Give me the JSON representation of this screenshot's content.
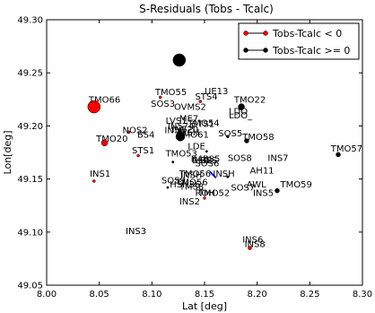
{
  "chart_data": {
    "type": "scatter",
    "title": "S-Residuals (Tobs - Tcalc)",
    "xlabel": "Lat [deg]",
    "ylabel": "Lon[deg]",
    "xlim": [
      8.0,
      8.3
    ],
    "ylim": [
      49.05,
      49.3
    ],
    "xticks": [
      "8.00",
      "8.05",
      "8.10",
      "8.15",
      "8.20",
      "8.25",
      "8.30"
    ],
    "yticks": [
      "49.05",
      "49.10",
      "49.15",
      "49.20",
      "49.25",
      "49.30"
    ],
    "grid": false,
    "legend_position": "top-right",
    "series": [
      {
        "name": "Tobs-Tcalc < 0",
        "color": "#ff0000"
      },
      {
        "name": "Tobs-Tcalc >= 0",
        "color": "#000000"
      }
    ],
    "markers": [
      {
        "x": 8.045,
        "y": 49.218,
        "r": 7,
        "sign": "neg"
      },
      {
        "x": 8.055,
        "y": 49.184,
        "r": 3.5,
        "sign": "neg"
      },
      {
        "x": 8.078,
        "y": 49.194,
        "r": 1.5,
        "sign": "neg"
      },
      {
        "x": 8.045,
        "y": 49.148,
        "r": 1.5,
        "sign": "neg"
      },
      {
        "x": 8.087,
        "y": 49.172,
        "r": 1.5,
        "sign": "neg"
      },
      {
        "x": 8.108,
        "y": 49.227,
        "r": 1.5,
        "sign": "neg"
      },
      {
        "x": 8.146,
        "y": 49.223,
        "r": 1.5,
        "sign": "neg"
      },
      {
        "x": 8.15,
        "y": 49.132,
        "r": 1.5,
        "sign": "neg"
      },
      {
        "x": 8.193,
        "y": 49.085,
        "r": 2,
        "sign": "neg"
      },
      {
        "x": 8.126,
        "y": 49.262,
        "r": 7,
        "sign": "pos"
      },
      {
        "x": 8.127,
        "y": 49.19,
        "r": 5,
        "sign": "pos"
      },
      {
        "x": 8.185,
        "y": 49.218,
        "r": 3.5,
        "sign": "pos"
      },
      {
        "x": 8.19,
        "y": 49.186,
        "r": 2.5,
        "sign": "pos"
      },
      {
        "x": 8.172,
        "y": 49.19,
        "r": 1.5,
        "sign": "pos"
      },
      {
        "x": 8.219,
        "y": 49.139,
        "r": 2.5,
        "sign": "pos"
      },
      {
        "x": 8.277,
        "y": 49.173,
        "r": 2.5,
        "sign": "pos"
      },
      {
        "x": 8.12,
        "y": 49.166,
        "r": 1.2,
        "sign": "pos"
      },
      {
        "x": 8.115,
        "y": 49.142,
        "r": 1.2,
        "sign": "pos"
      },
      {
        "x": 8.172,
        "y": 49.152,
        "r": 1.2,
        "sign": "pos"
      },
      {
        "x": 8.152,
        "y": 49.176,
        "r": 1.2,
        "sign": "pos"
      }
    ],
    "labels": [
      {
        "text": "TMO66",
        "x": 8.04,
        "y": 49.222
      },
      {
        "text": "TMO55",
        "x": 8.103,
        "y": 49.229
      },
      {
        "text": "STS4",
        "x": 8.141,
        "y": 49.225
      },
      {
        "text": "SOS3",
        "x": 8.099,
        "y": 49.218
      },
      {
        "text": "OVMS2",
        "x": 8.121,
        "y": 49.215
      },
      {
        "text": "TMO22",
        "x": 8.178,
        "y": 49.222
      },
      {
        "text": "LDO",
        "x": 8.173,
        "y": 49.211
      },
      {
        "text": "LDO_",
        "x": 8.173,
        "y": 49.207
      },
      {
        "text": "NOS2",
        "x": 8.072,
        "y": 49.193
      },
      {
        "text": "LVS1",
        "x": 8.113,
        "y": 49.202
      },
      {
        "text": "ME7",
        "x": 8.126,
        "y": 49.204
      },
      {
        "text": "STS1",
        "x": 8.138,
        "y": 49.199
      },
      {
        "text": "TMO54",
        "x": 8.134,
        "y": 49.2
      },
      {
        "text": "IN574",
        "x": 8.115,
        "y": 49.197
      },
      {
        "text": "IN56",
        "x": 8.112,
        "y": 49.193
      },
      {
        "text": "INS20",
        "x": 8.119,
        "y": 49.194
      },
      {
        "text": "WSH",
        "x": 8.125,
        "y": 49.191
      },
      {
        "text": "BS4",
        "x": 8.086,
        "y": 49.189
      },
      {
        "text": "TMO61",
        "x": 8.124,
        "y": 49.189
      },
      {
        "text": "SOS5",
        "x": 8.163,
        "y": 49.19
      },
      {
        "text": "TMO58",
        "x": 8.186,
        "y": 49.187
      },
      {
        "text": "TMO20",
        "x": 8.047,
        "y": 49.185
      },
      {
        "text": "LDE",
        "x": 8.134,
        "y": 49.178
      },
      {
        "text": "STS1",
        "x": 8.081,
        "y": 49.174
      },
      {
        "text": "TMO53",
        "x": 8.113,
        "y": 49.171
      },
      {
        "text": "TMO57",
        "x": 8.27,
        "y": 49.176
      },
      {
        "text": "B4BS5",
        "x": 8.137,
        "y": 49.166
      },
      {
        "text": "BLB",
        "x": 8.138,
        "y": 49.165
      },
      {
        "text": "BLS",
        "x": 8.146,
        "y": 49.165
      },
      {
        "text": "8",
        "x": 8.152,
        "y": 49.165
      },
      {
        "text": "SOS8",
        "x": 8.172,
        "y": 49.167
      },
      {
        "text": "INS7",
        "x": 8.21,
        "y": 49.167
      },
      {
        "text": "SOS6",
        "x": 8.141,
        "y": 49.162
      },
      {
        "text": "INSH",
        "x": 8.158,
        "y": 49.152
      },
      {
        "text": "AH11",
        "x": 8.193,
        "y": 49.155
      },
      {
        "text": "INS1",
        "x": 8.041,
        "y": 49.152
      },
      {
        "text": "SOS9",
        "x": 8.109,
        "y": 49.146
      },
      {
        "text": "TMO56",
        "x": 8.123,
        "y": 49.144
      },
      {
        "text": "HSH36",
        "x": 8.117,
        "y": 49.142
      },
      {
        "text": "AWL",
        "x": 8.19,
        "y": 49.142
      },
      {
        "text": "SOS7",
        "x": 8.175,
        "y": 49.139
      },
      {
        "text": "TMO59",
        "x": 8.222,
        "y": 49.142
      },
      {
        "text": "TMO52",
        "x": 8.144,
        "y": 49.134
      },
      {
        "text": "ROH",
        "x": 8.141,
        "y": 49.134
      },
      {
        "text": "INS5",
        "x": 8.196,
        "y": 49.134
      },
      {
        "text": "INS2",
        "x": 8.126,
        "y": 49.126
      },
      {
        "text": "INS3",
        "x": 8.075,
        "y": 49.098
      },
      {
        "text": "INS6",
        "x": 8.186,
        "y": 49.09
      },
      {
        "text": "INS8",
        "x": 8.188,
        "y": 49.086
      },
      {
        "text": "TMO56",
        "x": 8.126,
        "y": 49.152
      },
      {
        "text": "INSH",
        "x": 8.127,
        "y": 49.151
      },
      {
        "text": "TMS8",
        "x": 8.126,
        "y": 49.14
      },
      {
        "text": "UE13",
        "x": 8.15,
        "y": 49.23
      }
    ],
    "segments": [
      {
        "x1": 8.155,
        "y1": 49.157,
        "x2": 8.161,
        "y2": 49.151,
        "color": "#0000ff"
      }
    ]
  }
}
